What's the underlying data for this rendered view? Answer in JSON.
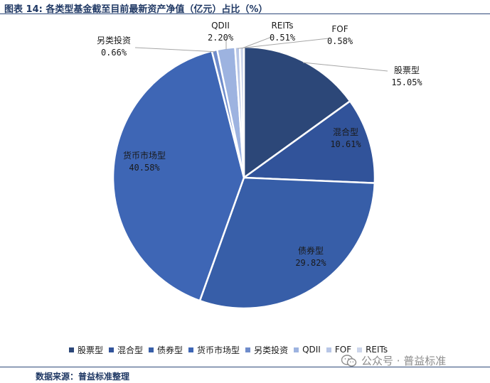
{
  "header": {
    "title": "图表 14:  各类型基金截至目前最新资产净值（亿元）占比（%）"
  },
  "footer": {
    "source": "数据来源：普益标准整理"
  },
  "watermark": {
    "text": "公众号 · 普益标准",
    "icon": "wechat-icon"
  },
  "chart_data": {
    "type": "pie",
    "start_angle_deg": 0,
    "direction": "clockwise",
    "legend_position": "bottom",
    "slices": [
      {
        "label": "股票型",
        "value": 15.05,
        "value_text": "15.05%",
        "color": "#2c4778"
      },
      {
        "label": "混合型",
        "value": 10.61,
        "value_text": "10.61%",
        "color": "#31539a"
      },
      {
        "label": "债券型",
        "value": 29.82,
        "value_text": "29.82%",
        "color": "#375ea8"
      },
      {
        "label": "货币市场型",
        "value": 40.58,
        "value_text": "40.58%",
        "color": "#3e66b5"
      },
      {
        "label": "另类投资",
        "value": 0.66,
        "value_text": "0.66%",
        "color": "#6f8ccb"
      },
      {
        "label": "QDII",
        "value": 2.2,
        "value_text": "2.20%",
        "color": "#9db3e0"
      },
      {
        "label": "FOF",
        "value": 0.58,
        "value_text": "0.58%",
        "color": "#b8c6e6"
      },
      {
        "label": "REITs",
        "value": 0.51,
        "value_text": "0.51%",
        "color": "#ccd5ea"
      }
    ]
  }
}
